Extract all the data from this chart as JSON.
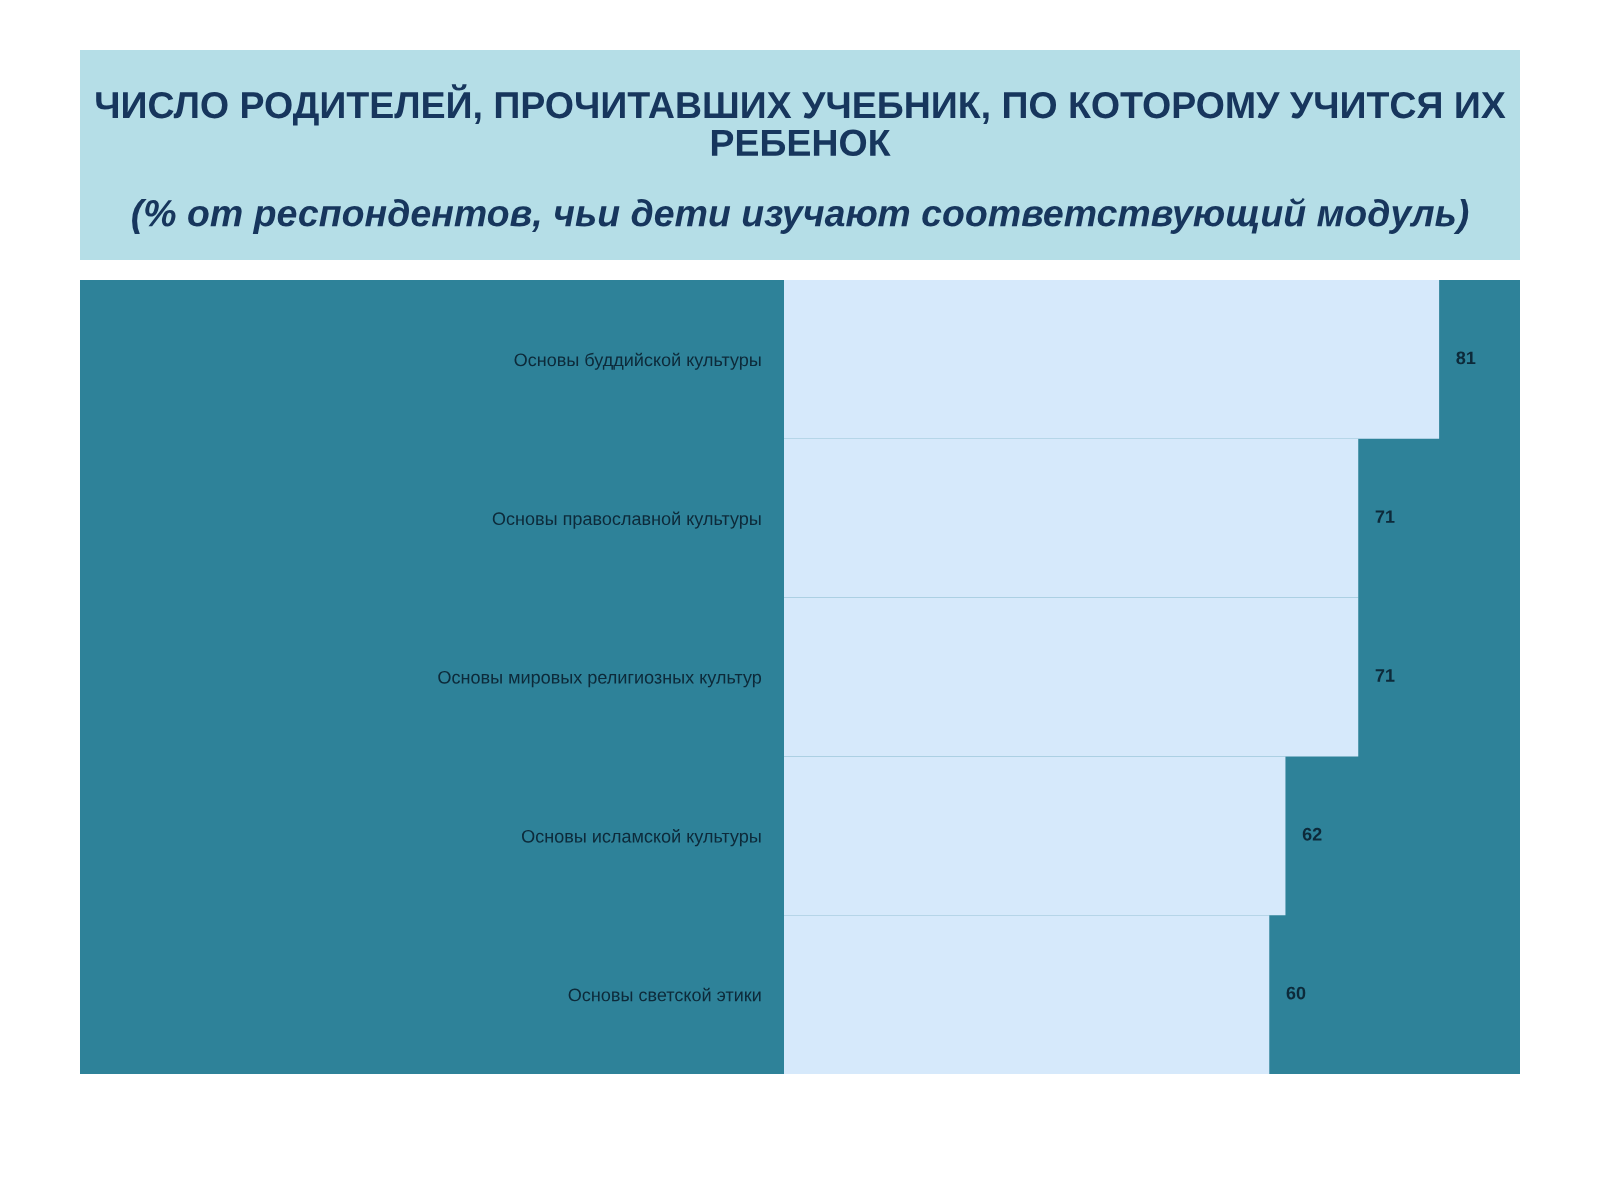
{
  "chart_data": {
    "type": "bar",
    "orientation": "horizontal",
    "title": "ЧИСЛО РОДИТЕЛЕЙ, ПРОЧИТАВШИХ УЧЕБНИК, ПО КОТОРОМУ УЧИТСЯ ИХ РЕБЕНОК",
    "subtitle": "(% от респондентов, чьи дети изучают соответствующий модуль)",
    "categories": [
      "Основы буддийской культуры",
      "Основы православной культуры",
      "Основы мировых религиозных культур",
      "Основы исламской культуры",
      "Основы светской этики"
    ],
    "values": [
      81,
      71,
      71,
      62,
      60
    ],
    "color": "#d6e9fb",
    "xlim": [
      0,
      91
    ],
    "data_labels": true,
    "grid": false,
    "legend": false,
    "tick_labels": "y"
  }
}
